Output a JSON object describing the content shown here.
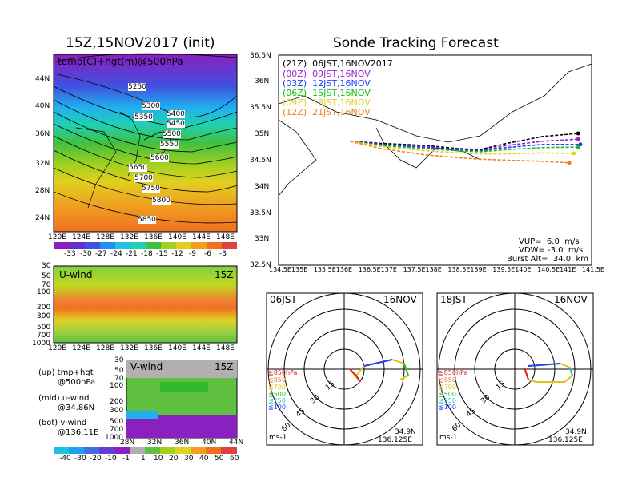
{
  "left": {
    "title": "15Z,15NOV2017 (init)",
    "map_label": "temp(C)+hgt(m)@500hPa",
    "lat_ticks": [
      "44N",
      "40N",
      "36N",
      "32N",
      "28N",
      "24N"
    ],
    "lon_ticks": [
      "120E",
      "124E",
      "128E",
      "132E",
      "136E",
      "140E",
      "144E",
      "148E"
    ],
    "contours": [
      "5250",
      "5300",
      "5350",
      "5400",
      "5450",
      "5500",
      "5550",
      "5600",
      "5650",
      "5700",
      "5750",
      "5800",
      "5850"
    ],
    "temp_colorbar": [
      "-33",
      "-30",
      "-27",
      "-24",
      "-21",
      "-18",
      "-15",
      "-12",
      "-9",
      "-6",
      "-3"
    ],
    "uwind_label": "U-wind",
    "uwind_time": "15Z",
    "uwind_pticks": [
      "30",
      "50",
      "70",
      "100",
      "200",
      "300",
      "500",
      "700",
      "1000"
    ],
    "vwind_label": "V-wind",
    "vwind_time": "15Z",
    "vwind_pticks": [
      "30",
      "50",
      "70",
      "100",
      "200",
      "300",
      "500",
      "700",
      "1000"
    ],
    "vwind_lat_ticks": [
      "28N",
      "32N",
      "36N",
      "40N",
      "44N"
    ],
    "wind_colorbar": [
      "-40",
      "-30",
      "-20",
      "-10",
      "-1",
      "1",
      "10",
      "20",
      "30",
      "40",
      "50",
      "60"
    ],
    "legend": {
      "up1": "(up) tmp+hgt",
      "up2": "@500hPa",
      "mid1": "(mid) u-wind",
      "mid2": "@34.86N",
      "bot1": "(bot) v-wind",
      "bot2": "@136.11E"
    }
  },
  "right": {
    "title": "Sonde Tracking Forecast",
    "lat_ticks": [
      "36.5N",
      "36N",
      "35.5N",
      "35N",
      "34.5N",
      "34N",
      "33.5N",
      "33N",
      "32.5N"
    ],
    "lon_ticks": [
      "134.5E",
      "135E",
      "135.5E",
      "136E",
      "136.5E",
      "137E",
      "137.5E",
      "138E",
      "138.5E",
      "139E",
      "139.5E",
      "140E",
      "140.5E",
      "141E",
      "141.5E"
    ],
    "runs": [
      {
        "label": "(21Z)  06JST,16NOV2017",
        "color": "#000000"
      },
      {
        "label": "(00Z)  09JST,16NOV",
        "color": "#9b1fd6"
      },
      {
        "label": "(03Z)  12JST,16NOV",
        "color": "#1e3cff"
      },
      {
        "label": "(06Z)  15JST,16NOV",
        "color": "#10c010"
      },
      {
        "label": "(09Z)  18JST,16NOV",
        "color": "#e0d020"
      },
      {
        "label": "(12Z)  21JST,16NOV",
        "color": "#f08020"
      }
    ],
    "params": {
      "vup": "VUP=  6.0  m/s",
      "vdw": "VDW= -3.0  m/s",
      "burst": "Burst Alt=  34.0  km"
    }
  },
  "hodo1": {
    "time": "06JST",
    "date": "16NOV",
    "rings": [
      "15",
      "30",
      "45",
      "60"
    ],
    "unit": "ms-1",
    "lat": "34.9N",
    "lon": "136.125E",
    "levels": [
      {
        "t": "≧850hPa",
        "c": "#e02020"
      },
      {
        "t": "≦850",
        "c": "#f08020"
      },
      {
        "t": "≦700",
        "c": "#e0c020"
      },
      {
        "t": "≦500",
        "c": "#20c020"
      },
      {
        "t": "≦250",
        "c": "#20c0c0"
      },
      {
        "t": "≦100",
        "c": "#2040ff"
      }
    ]
  },
  "hodo2": {
    "time": "18JST",
    "date": "16NOV",
    "rings": [
      "15",
      "30",
      "45",
      "60"
    ],
    "unit": "ms-1",
    "lat": "34.9N",
    "lon": "136.125E",
    "levels": [
      {
        "t": "≧850hPa",
        "c": "#e02020"
      },
      {
        "t": "≦850",
        "c": "#f08020"
      },
      {
        "t": "≦700",
        "c": "#e0c020"
      },
      {
        "t": "≦500",
        "c": "#20c020"
      },
      {
        "t": "≦250",
        "c": "#20c0c0"
      },
      {
        "t": "≦100",
        "c": "#2040ff"
      }
    ]
  },
  "chart_data": [
    {
      "type": "heatmap",
      "title": "15Z,15NOV2017 (init)",
      "xlabel": "",
      "ylabel": "",
      "xlim": [
        120,
        150
      ],
      "ylim": [
        22,
        47
      ],
      "contour_levels": [
        5250,
        5300,
        5350,
        5400,
        5450,
        5500,
        5550,
        5600,
        5650,
        5700,
        5750,
        5800,
        5850
      ],
      "colorbar": [
        -33,
        -30,
        -27,
        -24,
        -21,
        -18,
        -15,
        -12,
        -9,
        -6,
        -3
      ]
    },
    {
      "type": "heatmap",
      "title": "U-wind",
      "xlim": [
        120,
        150
      ],
      "ylim": [
        1000,
        30
      ],
      "colorbar": [
        -40,
        -30,
        -20,
        -10,
        -1,
        1,
        10,
        20,
        30,
        40,
        50,
        60
      ]
    },
    {
      "type": "heatmap",
      "title": "V-wind",
      "xlim": [
        28,
        44
      ],
      "ylim": [
        1000,
        30
      ]
    },
    {
      "type": "line",
      "title": "Sonde Tracking Forecast",
      "xlim": [
        134.5,
        141.5
      ],
      "ylim": [
        32.5,
        36.5
      ],
      "series": [
        {
          "name": "(21Z) 06JST,16NOV2017",
          "x": [
            136.1,
            136.8,
            137.8,
            138.5,
            139.0,
            139.6,
            140.4,
            141.2
          ],
          "y": [
            34.86,
            34.82,
            34.78,
            34.72,
            34.7,
            34.82,
            34.95,
            35.01
          ]
        },
        {
          "name": "(00Z) 09JST,16NOV",
          "x": [
            136.1,
            136.8,
            137.8,
            138.5,
            139.0,
            139.6,
            140.4,
            141.2
          ],
          "y": [
            34.86,
            34.8,
            34.76,
            34.7,
            34.68,
            34.78,
            34.86,
            34.9
          ]
        },
        {
          "name": "(03Z) 12JST,16NOV",
          "x": [
            136.1,
            136.8,
            137.8,
            138.5,
            139.0,
            139.6,
            140.4,
            141.25
          ],
          "y": [
            34.86,
            34.8,
            34.74,
            34.7,
            34.68,
            34.74,
            34.8,
            34.8
          ]
        },
        {
          "name": "(06Z) 15JST,16NOV",
          "x": [
            136.1,
            136.8,
            137.8,
            138.5,
            139.0,
            139.6,
            140.4,
            141.2
          ],
          "y": [
            34.86,
            34.78,
            34.72,
            34.68,
            34.66,
            34.7,
            34.74,
            34.75
          ]
        },
        {
          "name": "(09Z) 18JST,16NOV",
          "x": [
            136.1,
            136.8,
            137.8,
            138.5,
            139.0,
            139.6,
            140.4,
            141.1
          ],
          "y": [
            34.86,
            34.76,
            34.68,
            34.64,
            34.62,
            34.62,
            34.64,
            34.63
          ]
        },
        {
          "name": "(12Z) 21JST,16NOV",
          "x": [
            136.1,
            136.8,
            137.8,
            138.5,
            139.0,
            139.6,
            140.4,
            141.0
          ],
          "y": [
            34.86,
            34.72,
            34.6,
            34.55,
            34.52,
            34.5,
            34.48,
            34.45
          ]
        }
      ]
    }
  ]
}
